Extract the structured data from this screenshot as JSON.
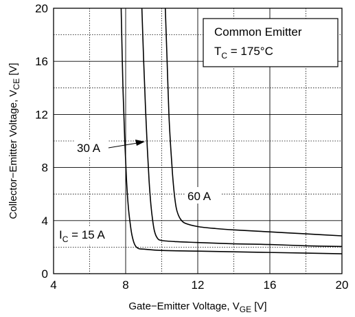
{
  "chart_data": {
    "type": "line",
    "title": "",
    "xlabel": {
      "main": "Gate−Emitter Voltage, V",
      "sub": "GE",
      "unit": " [V]"
    },
    "ylabel": {
      "main": "Collector−Emitter Voltage, V",
      "sub": "CE",
      "unit": " [V]"
    },
    "xlim": [
      4,
      20
    ],
    "ylim": [
      0,
      20
    ],
    "x_ticks": [
      4,
      8,
      12,
      16,
      20
    ],
    "y_ticks": [
      0,
      4,
      8,
      12,
      16,
      20
    ],
    "grid": true,
    "legend_box": {
      "line1": "Common Emitter",
      "line2_main": "T",
      "line2_sub": "C",
      "line2_rest": " = 175°C",
      "placement": "top-right"
    },
    "series": [
      {
        "name": "15 A",
        "label": {
          "main": "I",
          "sub": "C",
          "rest": " = 15 A"
        },
        "points": [
          [
            7.75,
            20
          ],
          [
            7.85,
            14
          ],
          [
            7.95,
            10
          ],
          [
            8.05,
            7
          ],
          [
            8.15,
            5
          ],
          [
            8.25,
            3.8
          ],
          [
            8.35,
            2.9
          ],
          [
            8.5,
            2.2
          ],
          [
            8.7,
            1.9
          ],
          [
            9,
            1.85
          ],
          [
            10,
            1.75
          ],
          [
            12,
            1.7
          ],
          [
            14,
            1.65
          ],
          [
            16,
            1.6
          ],
          [
            18,
            1.55
          ],
          [
            20,
            1.5
          ]
        ]
      },
      {
        "name": "30 A",
        "label": {
          "main": "30 A"
        },
        "points": [
          [
            8.9,
            20
          ],
          [
            9.0,
            16
          ],
          [
            9.1,
            12.5
          ],
          [
            9.2,
            9.5
          ],
          [
            9.3,
            7
          ],
          [
            9.4,
            5.2
          ],
          [
            9.5,
            4
          ],
          [
            9.6,
            3.2
          ],
          [
            9.75,
            2.7
          ],
          [
            10,
            2.5
          ],
          [
            11,
            2.4
          ],
          [
            12,
            2.35
          ],
          [
            14,
            2.25
          ],
          [
            16,
            2.2
          ],
          [
            18,
            2.1
          ],
          [
            20,
            2.05
          ]
        ]
      },
      {
        "name": "60 A",
        "label": {
          "main": "60 A"
        },
        "points": [
          [
            10.2,
            20
          ],
          [
            10.3,
            16
          ],
          [
            10.4,
            12
          ],
          [
            10.5,
            9.5
          ],
          [
            10.6,
            7.5
          ],
          [
            10.7,
            6
          ],
          [
            10.8,
            5
          ],
          [
            10.9,
            4.5
          ],
          [
            11.05,
            4.1
          ],
          [
            11.3,
            3.8
          ],
          [
            12,
            3.55
          ],
          [
            13,
            3.4
          ],
          [
            14,
            3.3
          ],
          [
            16,
            3.15
          ],
          [
            18,
            3.0
          ],
          [
            20,
            2.85
          ]
        ]
      }
    ]
  }
}
